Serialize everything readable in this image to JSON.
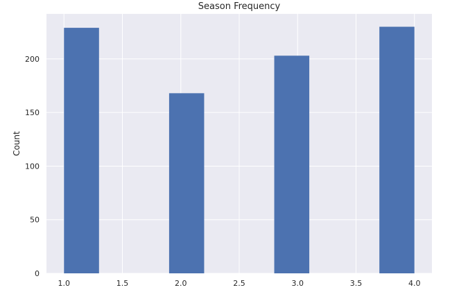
{
  "chart_data": {
    "type": "bar",
    "title": "Season Frequency",
    "xlabel": "",
    "ylabel": "Count",
    "xlim": [
      0.85,
      4.15
    ],
    "ylim": [
      0,
      242
    ],
    "x_ticks": [
      1.0,
      1.5,
      2.0,
      2.5,
      3.0,
      3.5,
      4.0
    ],
    "x_tick_labels": [
      "1.0",
      "1.5",
      "2.0",
      "2.5",
      "3.0",
      "3.5",
      "4.0"
    ],
    "y_ticks": [
      0,
      50,
      100,
      150,
      200
    ],
    "y_tick_labels": [
      "0",
      "50",
      "100",
      "150",
      "200"
    ],
    "bin_width": 0.3,
    "bars": [
      {
        "x_start": 1.0,
        "value": 229
      },
      {
        "x_start": 1.9,
        "value": 168
      },
      {
        "x_start": 2.8,
        "value": 203
      },
      {
        "x_start": 3.7,
        "value": 230
      }
    ],
    "grid": true,
    "colors": {
      "bar": "#4c72b0",
      "background": "#eaeaf2",
      "grid": "#ffffff"
    }
  }
}
